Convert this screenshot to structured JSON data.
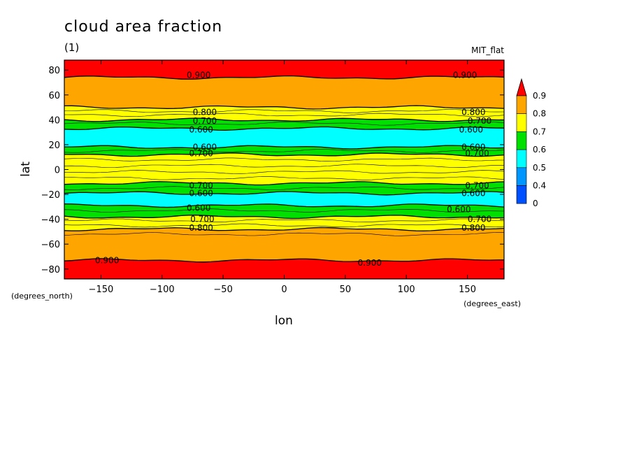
{
  "chart_data": {
    "type": "contour",
    "title": "cloud area fraction",
    "subtitle": "(1)",
    "dataset": "MIT_flat",
    "xlabel": "lon",
    "ylabel": "lat",
    "x_units": "(degrees_east)",
    "y_units": "(degrees_north)",
    "xlim": [
      -180,
      180
    ],
    "ylim": [
      -88,
      88
    ],
    "x_ticks": [
      -150,
      -100,
      -50,
      0,
      50,
      100,
      150
    ],
    "y_ticks": [
      80,
      60,
      40,
      20,
      0,
      -20,
      -40,
      -60,
      -80
    ],
    "x_tick_labels": [
      "−150",
      "−100",
      "−50",
      "0",
      "50",
      "100",
      "150"
    ],
    "y_tick_labels": [
      "80",
      "60",
      "40",
      "20",
      "0",
      "−20",
      "−40",
      "−60",
      "−80"
    ],
    "bands": [
      {
        "lat_from": 88,
        "lat_to": 74,
        "color": "#ff0000",
        "level": "0.9+"
      },
      {
        "lat_from": 74,
        "lat_to": 50,
        "color": "#ffa500",
        "level": "0.8-0.9"
      },
      {
        "lat_from": 50,
        "lat_to": 40,
        "color": "#ffff00",
        "level": "0.7-0.8"
      },
      {
        "lat_from": 40,
        "lat_to": 33,
        "color": "#00e000",
        "level": "0.6-0.7"
      },
      {
        "lat_from": 33,
        "lat_to": 18,
        "color": "#00ffff",
        "level": "0.5-0.6"
      },
      {
        "lat_from": 18,
        "lat_to": 12,
        "color": "#00e000",
        "level": "0.6-0.7"
      },
      {
        "lat_from": 12,
        "lat_to": -11,
        "color": "#ffff00",
        "level": "0.7-0.8"
      },
      {
        "lat_from": -11,
        "lat_to": -19,
        "color": "#00e000",
        "level": "0.6-0.7"
      },
      {
        "lat_from": -19,
        "lat_to": -29,
        "color": "#00ffff",
        "level": "0.5-0.6"
      },
      {
        "lat_from": -29,
        "lat_to": -38,
        "color": "#00e000",
        "level": "0.6-0.7"
      },
      {
        "lat_from": -38,
        "lat_to": -48,
        "color": "#ffff00",
        "level": "0.7-0.8"
      },
      {
        "lat_from": -48,
        "lat_to": -73,
        "color": "#ffa500",
        "level": "0.8-0.9"
      },
      {
        "lat_from": -73,
        "lat_to": -88,
        "color": "#ff0000",
        "level": "0.9+"
      }
    ],
    "contour_lines_lat": [
      74,
      50,
      47,
      44,
      40,
      37,
      33,
      18,
      15,
      12,
      8,
      3,
      -2,
      -7,
      -11,
      -15,
      -19,
      -29,
      -33,
      -38,
      -41,
      -45,
      -48,
      -52,
      -73
    ],
    "contour_labels": [
      {
        "text": "0.900",
        "lon": -70,
        "lat": 76
      },
      {
        "text": "0.900",
        "lon": 148,
        "lat": 76
      },
      {
        "text": "0.800",
        "lon": -65,
        "lat": 46
      },
      {
        "text": "0.800",
        "lon": 155,
        "lat": 46
      },
      {
        "text": "0.700",
        "lon": -65,
        "lat": 39
      },
      {
        "text": "0.700",
        "lon": 160,
        "lat": 39
      },
      {
        "text": "0.600",
        "lon": -68,
        "lat": 32
      },
      {
        "text": "0.600",
        "lon": 153,
        "lat": 32
      },
      {
        "text": "0.600",
        "lon": -65,
        "lat": 18
      },
      {
        "text": "0.600",
        "lon": 155,
        "lat": 18
      },
      {
        "text": "0.700",
        "lon": -68,
        "lat": 13
      },
      {
        "text": "0.700",
        "lon": 158,
        "lat": 13
      },
      {
        "text": "0.700",
        "lon": -68,
        "lat": -13
      },
      {
        "text": "0.700",
        "lon": 158,
        "lat": -13
      },
      {
        "text": "0.600",
        "lon": -68,
        "lat": -19
      },
      {
        "text": "0.600",
        "lon": 155,
        "lat": -19
      },
      {
        "text": "0.600",
        "lon": -70,
        "lat": -31
      },
      {
        "text": "0.600",
        "lon": 143,
        "lat": -32
      },
      {
        "text": "0.700",
        "lon": -67,
        "lat": -40
      },
      {
        "text": "0.700",
        "lon": 160,
        "lat": -40
      },
      {
        "text": "0.800",
        "lon": -68,
        "lat": -47
      },
      {
        "text": "0.800",
        "lon": 155,
        "lat": -47
      },
      {
        "text": "0.900",
        "lon": -145,
        "lat": -73
      },
      {
        "text": "0.900",
        "lon": 70,
        "lat": -75
      }
    ],
    "colorbar": {
      "levels": [
        "0.9",
        "0.8",
        "0.7",
        "0.6",
        "0.5",
        "0.4",
        "0"
      ],
      "colors": [
        "#ff0000",
        "#ffa500",
        "#ffff00",
        "#00e000",
        "#00ffff",
        "#0096ff",
        "#0050ff"
      ]
    }
  }
}
